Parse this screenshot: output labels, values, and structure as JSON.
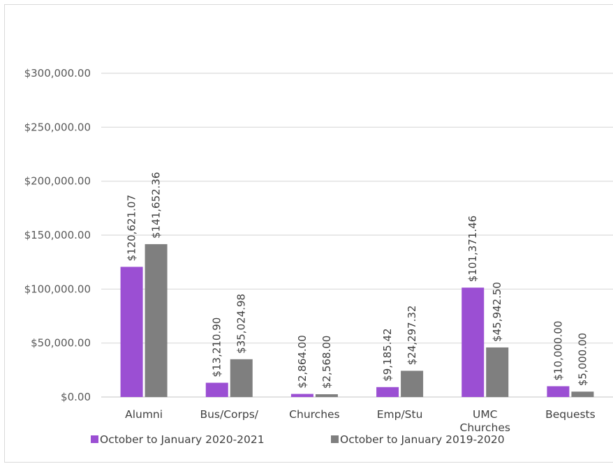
{
  "chart_data": {
    "type": "bar",
    "categories": [
      "Alumni",
      "Bus/Corps/",
      "Churches",
      "Emp/Stu",
      "UMC Churches",
      "Bequests"
    ],
    "category_lines": [
      [
        "Alumni"
      ],
      [
        "Bus/Corps/"
      ],
      [
        "Churches"
      ],
      [
        "Emp/Stu"
      ],
      [
        "UMC",
        "Churches"
      ],
      [
        "Bequests"
      ]
    ],
    "series": [
      {
        "name": "October to January 2020-2021",
        "color": "#9b4fd3",
        "values": [
          120621.07,
          13210.9,
          2864.0,
          9185.42,
          101371.46,
          10000.0
        ],
        "data_labels": [
          "$120,621.07",
          "$13,210.90",
          "$2,864.00",
          "$9,185.42",
          "$101,371.46",
          "$10,000.00"
        ]
      },
      {
        "name": "October to January 2019-2020",
        "color": "#7f7f7f",
        "values": [
          141652.36,
          35024.98,
          2568.0,
          24297.32,
          45942.5,
          5000.0
        ],
        "data_labels": [
          "$141,652.36",
          "$35,024.98",
          "$2,568.00",
          "$24,297.32",
          "$45,942.50",
          "$5,000.00"
        ]
      }
    ],
    "ylim": [
      0,
      300000
    ],
    "yticks": [
      0,
      50000,
      100000,
      150000,
      200000,
      250000,
      300000
    ],
    "ytick_labels": [
      "$0.00",
      "$50,000.00",
      "$100,000.00",
      "$150,000.00",
      "$200,000.00",
      "$250,000.00",
      "$300,000.00"
    ],
    "title": "",
    "xlabel": "",
    "ylabel": "",
    "grid": true,
    "legend_position": "bottom",
    "gridline_color": "#d9d9d9"
  }
}
